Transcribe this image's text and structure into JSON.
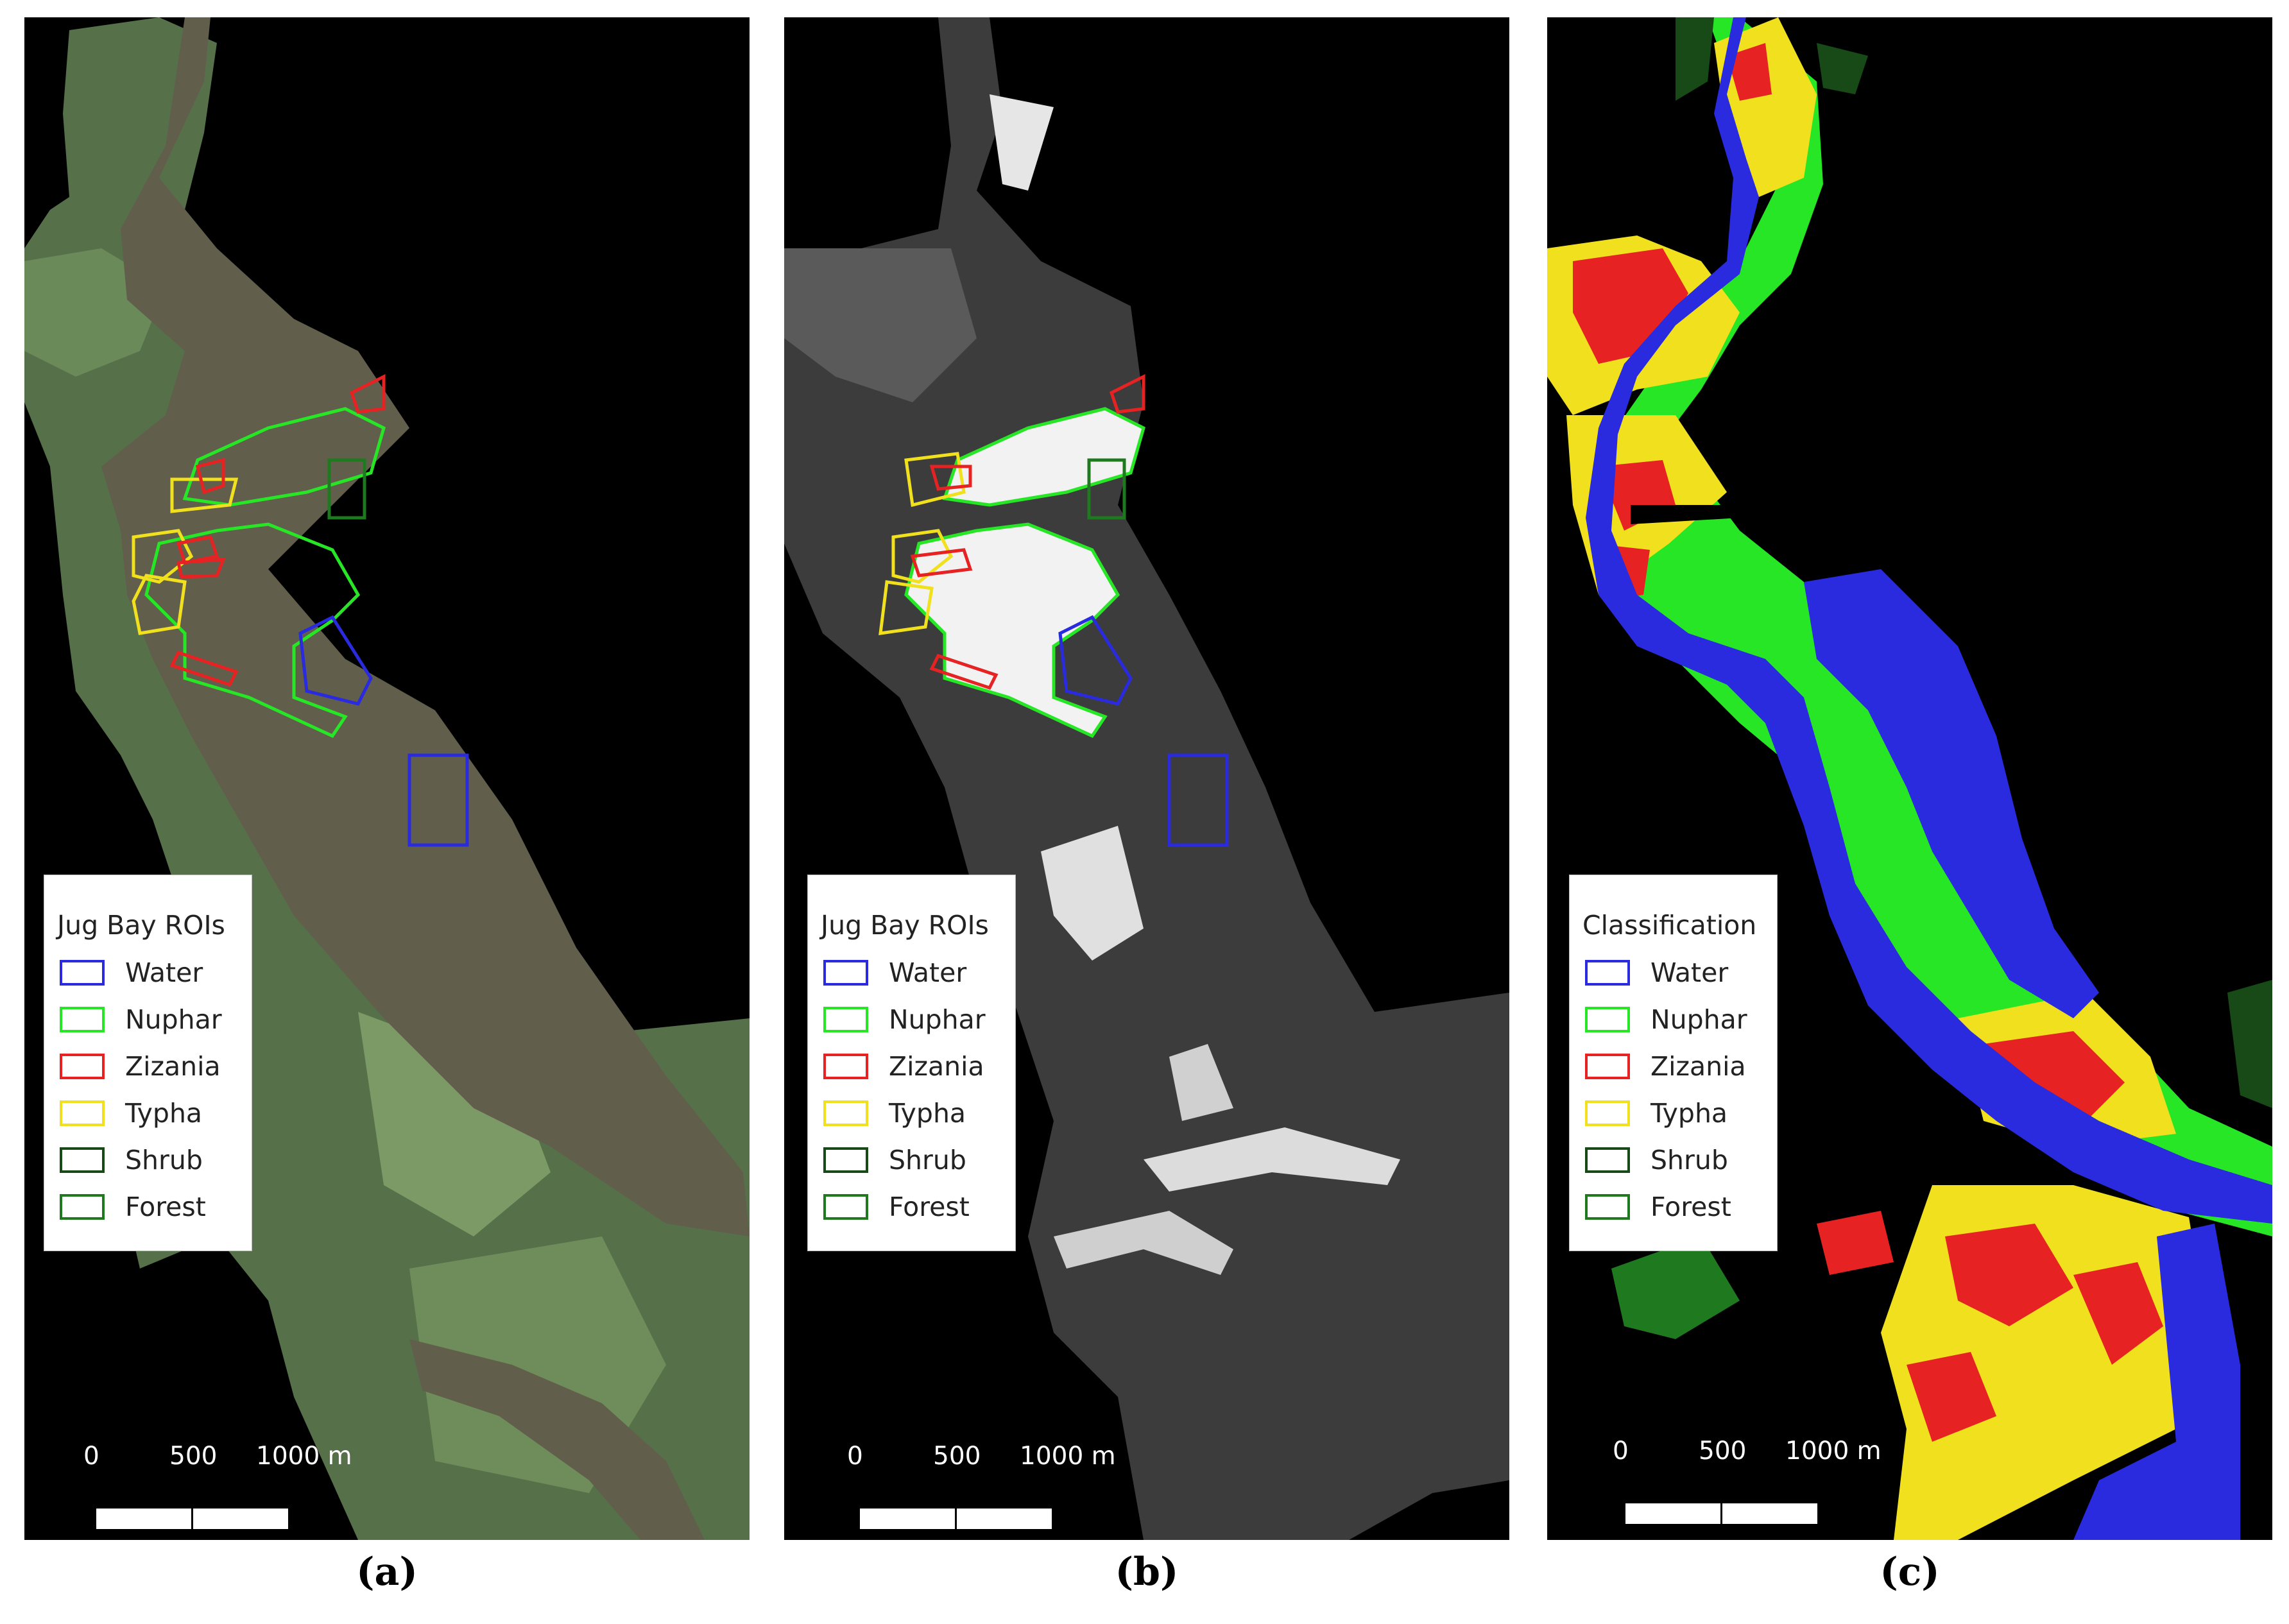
{
  "panels": [
    {
      "label": "(a)",
      "legend_title": "Jug Bay ROIs",
      "legend_items": [
        {
          "label": "Water",
          "color": "#2a2adf"
        },
        {
          "label": "Nuphar",
          "color": "#26e626"
        },
        {
          "label": "Zizania",
          "color": "#e62222"
        },
        {
          "label": "Typha",
          "color": "#f0e01e"
        },
        {
          "label": "Shrub",
          "color": "#174a17"
        },
        {
          "label": "Forest",
          "color": "#1f7a1f"
        }
      ],
      "scale": {
        "tick0": "0",
        "tick1": "500",
        "tick2": "1000 m"
      }
    },
    {
      "label": "(b)",
      "legend_title": "Jug Bay ROIs",
      "legend_items": [
        {
          "label": "Water",
          "color": "#2a2adf"
        },
        {
          "label": "Nuphar",
          "color": "#26e626"
        },
        {
          "label": "Zizania",
          "color": "#e62222"
        },
        {
          "label": "Typha",
          "color": "#f0e01e"
        },
        {
          "label": "Shrub",
          "color": "#174a17"
        },
        {
          "label": "Forest",
          "color": "#1f7a1f"
        }
      ],
      "scale": {
        "tick0": "0",
        "tick1": "500",
        "tick2": "1000 m"
      }
    },
    {
      "label": "(c)",
      "legend_title": "Classification",
      "legend_items": [
        {
          "label": "Water",
          "color": "#2a2adf"
        },
        {
          "label": "Nuphar",
          "color": "#26e626"
        },
        {
          "label": "Zizania",
          "color": "#e62222"
        },
        {
          "label": "Typha",
          "color": "#f0e01e"
        },
        {
          "label": "Shrub",
          "color": "#174a17"
        },
        {
          "label": "Forest",
          "color": "#1f7a1f"
        }
      ],
      "scale": {
        "tick0": "0",
        "tick1": "500",
        "tick2": "1000 m"
      }
    }
  ]
}
